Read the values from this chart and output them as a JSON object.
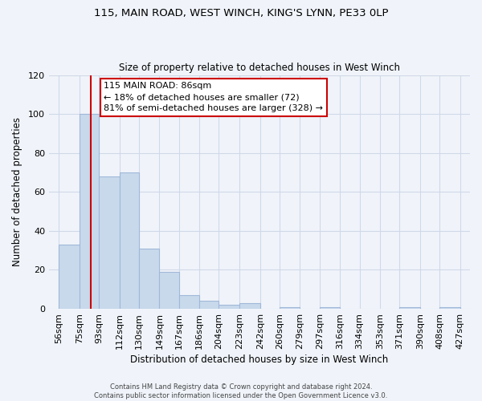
{
  "title1": "115, MAIN ROAD, WEST WINCH, KING'S LYNN, PE33 0LP",
  "title2": "Size of property relative to detached houses in West Winch",
  "xlabel": "Distribution of detached houses by size in West Winch",
  "ylabel": "Number of detached properties",
  "bar_left_edges": [
    56,
    75,
    93,
    112,
    130,
    149,
    167,
    186,
    204,
    223,
    242,
    260,
    279,
    297,
    316,
    334,
    353,
    371,
    390,
    408
  ],
  "bar_widths": [
    19,
    18,
    19,
    18,
    19,
    18,
    19,
    18,
    19,
    19,
    18,
    19,
    18,
    19,
    18,
    19,
    18,
    19,
    18,
    19
  ],
  "bar_heights": [
    33,
    100,
    68,
    70,
    31,
    19,
    7,
    4,
    2,
    3,
    0,
    1,
    0,
    1,
    0,
    0,
    0,
    1,
    0,
    1
  ],
  "bar_color": "#c8d9ec",
  "bar_edge_color": "#a0b8d8",
  "tick_labels": [
    "56sqm",
    "75sqm",
    "93sqm",
    "112sqm",
    "130sqm",
    "149sqm",
    "167sqm",
    "186sqm",
    "204sqm",
    "223sqm",
    "242sqm",
    "260sqm",
    "279sqm",
    "297sqm",
    "316sqm",
    "334sqm",
    "353sqm",
    "371sqm",
    "390sqm",
    "408sqm",
    "427sqm"
  ],
  "tick_positions": [
    56,
    75,
    93,
    112,
    130,
    149,
    167,
    186,
    204,
    223,
    242,
    260,
    279,
    297,
    316,
    334,
    353,
    371,
    390,
    408,
    427
  ],
  "ylim": [
    0,
    120
  ],
  "xlim": [
    47,
    436
  ],
  "property_line_x": 86,
  "property_line_color": "#cc0000",
  "annotation_line1": "115 MAIN ROAD: 86sqm",
  "annotation_line2": "← 18% of detached houses are smaller (72)",
  "annotation_line3": "81% of semi-detached houses are larger (328) →",
  "annotation_box_color": "#ffffff",
  "annotation_border_color": "#cc0000",
  "grid_color": "#d0d8e8",
  "background_color": "#f0f4fa",
  "footer_text": "Contains HM Land Registry data © Crown copyright and database right 2024.\nContains public sector information licensed under the Open Government Licence v3.0."
}
